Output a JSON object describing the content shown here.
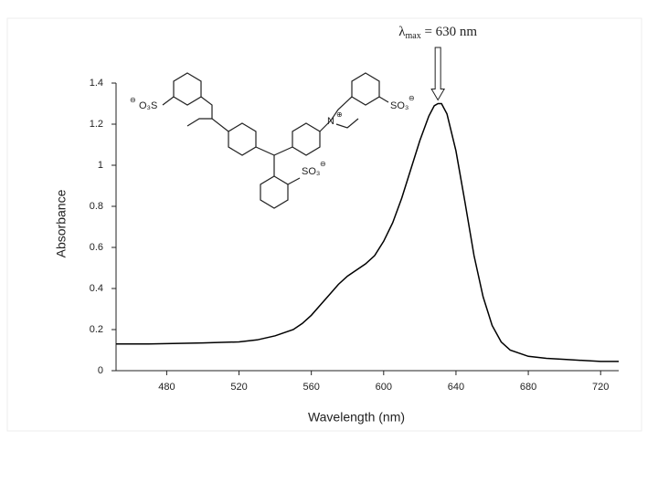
{
  "chart_data": {
    "type": "line",
    "x_label": "Wavelength (nm)",
    "y_label": "Absorbance",
    "annotation": {
      "symbol": "λ",
      "subscript": "max",
      "text": " = 630 nm"
    },
    "structure_labels": [
      "O₃S",
      "⊖",
      "SO₃",
      "⊖",
      "N",
      "⊕",
      "SO₃",
      "⊖"
    ],
    "x": [
      452,
      470,
      500,
      520,
      530,
      540,
      550,
      555,
      560,
      565,
      570,
      575,
      580,
      585,
      590,
      595,
      600,
      605,
      610,
      615,
      620,
      625,
      628,
      630,
      632,
      635,
      640,
      645,
      650,
      655,
      660,
      665,
      670,
      680,
      690,
      700,
      710,
      720,
      730
    ],
    "values": [
      0.13,
      0.13,
      0.135,
      0.14,
      0.15,
      0.17,
      0.2,
      0.23,
      0.27,
      0.32,
      0.37,
      0.42,
      0.46,
      0.49,
      0.52,
      0.56,
      0.63,
      0.72,
      0.84,
      0.98,
      1.12,
      1.24,
      1.29,
      1.3,
      1.3,
      1.25,
      1.07,
      0.82,
      0.56,
      0.36,
      0.22,
      0.14,
      0.1,
      0.07,
      0.06,
      0.055,
      0.05,
      0.045,
      0.045
    ],
    "color": "#000000",
    "xlim": [
      452,
      730
    ],
    "xticks": [
      480,
      520,
      560,
      600,
      640,
      680,
      720
    ],
    "ylim": [
      0,
      1.4
    ],
    "yticks": [
      0,
      0.2,
      0.4,
      0.6,
      0.8,
      1,
      1.2,
      1.4
    ]
  }
}
